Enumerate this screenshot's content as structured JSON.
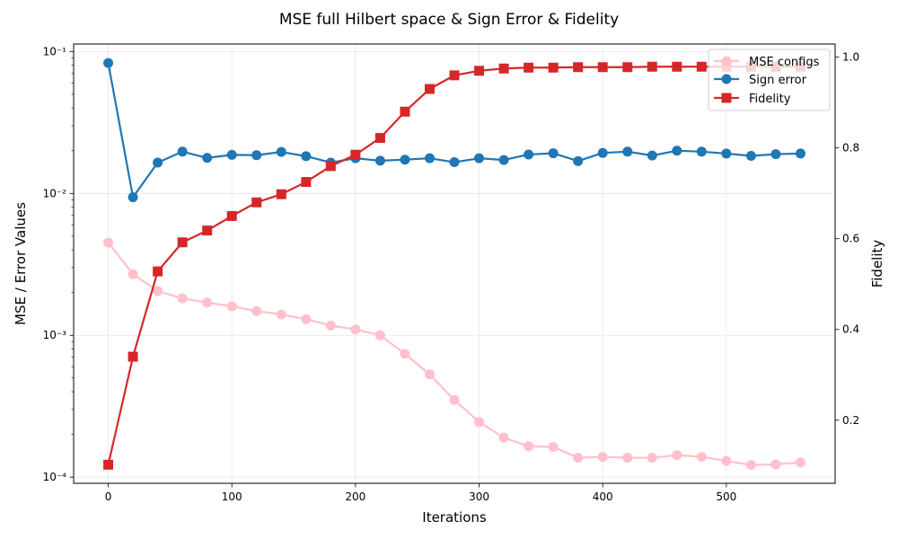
{
  "chart_data": {
    "type": "line",
    "title": "MSE full Hilbert space & Sign Error & Fidelity",
    "xlabel": "Iterations",
    "ylabel_left": "MSE / Error Values",
    "ylabel_right": "Fidelity",
    "left_axis_scale": "log",
    "xlim": [
      -28,
      588
    ],
    "ylim_left": [
      9.05e-05,
      0.113
    ],
    "ylim_right": [
      0.061,
      1.029
    ],
    "x_ticks": [
      0,
      100,
      200,
      300,
      400,
      500
    ],
    "x_tick_labels": [
      "0",
      "100",
      "200",
      "300",
      "400",
      "500"
    ],
    "left_major_ticks": [
      0.0001,
      0.001,
      0.01,
      0.1
    ],
    "left_tick_labels": [
      "10⁻⁴",
      "10⁻³",
      "10⁻²",
      "10⁻¹"
    ],
    "right_ticks": [
      0.2,
      0.4,
      0.6,
      0.8,
      1.0
    ],
    "right_tick_labels": [
      "0.2",
      "0.4",
      "0.6",
      "0.8",
      "1.0"
    ],
    "grid": true,
    "legend_position": "top-right",
    "x": [
      0,
      20,
      40,
      60,
      80,
      100,
      120,
      140,
      160,
      180,
      200,
      220,
      240,
      260,
      280,
      300,
      320,
      340,
      360,
      380,
      400,
      420,
      440,
      460,
      480,
      500,
      520,
      540,
      560
    ],
    "series": [
      {
        "name": "MSE configs",
        "axis": "left",
        "color": "#ffc0cb",
        "marker": "circle",
        "values": [
          0.0045,
          0.0027,
          0.00205,
          0.00182,
          0.0017,
          0.0016,
          0.00148,
          0.0014,
          0.0013,
          0.00117,
          0.0011,
          0.001,
          0.00074,
          0.00053,
          0.00035,
          0.000245,
          0.00019,
          0.000165,
          0.000163,
          0.000137,
          0.000139,
          0.000137,
          0.000137,
          0.000143,
          0.000139,
          0.00013,
          0.000122,
          0.000123,
          0.000127
        ]
      },
      {
        "name": "Sign error",
        "axis": "left",
        "color": "#1f77b4",
        "marker": "circle",
        "values": [
          0.083,
          0.0094,
          0.0165,
          0.0197,
          0.0178,
          0.0187,
          0.0186,
          0.0196,
          0.0183,
          0.0165,
          0.0177,
          0.017,
          0.0173,
          0.0177,
          0.0166,
          0.0177,
          0.0172,
          0.0188,
          0.0192,
          0.0169,
          0.0193,
          0.0197,
          0.0185,
          0.02,
          0.0197,
          0.0191,
          0.0184,
          0.0189,
          0.0191
        ]
      },
      {
        "name": "Fidelity",
        "axis": "right",
        "color": "#d62728",
        "marker": "square",
        "values": [
          0.102,
          0.34,
          0.528,
          0.592,
          0.618,
          0.65,
          0.68,
          0.698,
          0.725,
          0.76,
          0.785,
          0.822,
          0.88,
          0.93,
          0.96,
          0.97,
          0.975,
          0.977,
          0.977,
          0.978,
          0.978,
          0.978,
          0.979,
          0.979,
          0.979,
          0.979,
          0.979,
          0.979,
          0.979
        ]
      }
    ]
  }
}
